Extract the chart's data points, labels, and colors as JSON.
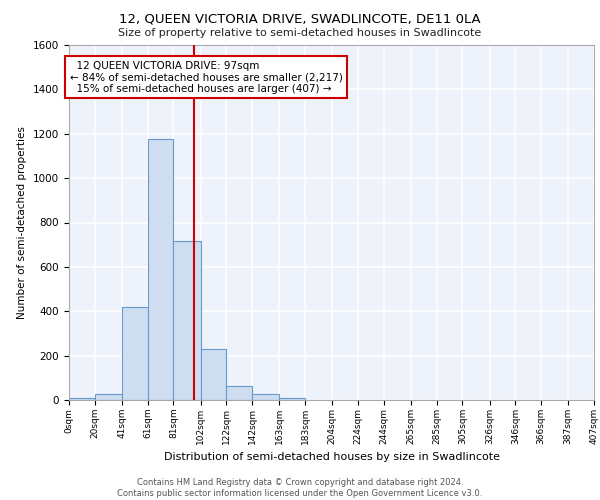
{
  "title1": "12, QUEEN VICTORIA DRIVE, SWADLINCOTE, DE11 0LA",
  "title2": "Size of property relative to semi-detached houses in Swadlincote",
  "xlabel": "Distribution of semi-detached houses by size in Swadlincote",
  "ylabel": "Number of semi-detached properties",
  "bin_edges": [
    0,
    20,
    41,
    61,
    81,
    102,
    122,
    142,
    163,
    183,
    204,
    224,
    244,
    265,
    285,
    305,
    326,
    346,
    366,
    387,
    407
  ],
  "bar_heights": [
    10,
    28,
    420,
    1175,
    715,
    230,
    65,
    28,
    10,
    0,
    0,
    0,
    0,
    0,
    0,
    0,
    0,
    0,
    0,
    0
  ],
  "bar_color": "#cfddf0",
  "bar_edge_color": "#6699cc",
  "property_size": 97,
  "property_label": "12 QUEEN VICTORIA DRIVE: 97sqm",
  "pct_smaller": 84,
  "count_smaller": 2217,
  "pct_larger": 15,
  "count_larger": 407,
  "vline_color": "#cc0000",
  "annotation_box_color": "#cc0000",
  "background_color": "#eef2fb",
  "grid_color": "#ffffff",
  "ylim": [
    0,
    1600
  ],
  "footer": "Contains HM Land Registry data © Crown copyright and database right 2024.\nContains public sector information licensed under the Open Government Licence v3.0.",
  "tick_labels": [
    "0sqm",
    "20sqm",
    "41sqm",
    "61sqm",
    "81sqm",
    "102sqm",
    "122sqm",
    "142sqm",
    "163sqm",
    "183sqm",
    "204sqm",
    "224sqm",
    "244sqm",
    "265sqm",
    "285sqm",
    "305sqm",
    "326sqm",
    "346sqm",
    "366sqm",
    "387sqm",
    "407sqm"
  ]
}
